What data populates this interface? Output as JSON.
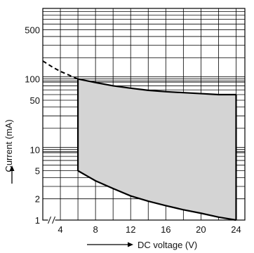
{
  "chart_data": {
    "type": "area",
    "xlabel": "DC voltage (V)",
    "ylabel": "Current (mA)",
    "x_scale": "linear",
    "y_scale": "log",
    "xlim": [
      2,
      25
    ],
    "ylim": [
      1,
      1000
    ],
    "x_ticks": [
      "4",
      "8",
      "12",
      "16",
      "20",
      "24"
    ],
    "y_ticks": [
      "1",
      "2",
      "5",
      "10",
      "50",
      "100",
      "500"
    ],
    "grid": true,
    "axis_break": "x",
    "colors": {
      "fill": "#d4d4d4",
      "line": "#000000",
      "grid": "#000000"
    },
    "series": [
      {
        "role": "upper-extrapolated",
        "line_style": "dashed",
        "points": [
          [
            2,
            180
          ],
          [
            3,
            150
          ],
          [
            4,
            128
          ],
          [
            5,
            113
          ],
          [
            6,
            100
          ]
        ]
      },
      {
        "role": "upper-boundary",
        "line_style": "solid",
        "points": [
          [
            6,
            100
          ],
          [
            8,
            89
          ],
          [
            10,
            80
          ],
          [
            12,
            74
          ],
          [
            14,
            69
          ],
          [
            16,
            66
          ],
          [
            18,
            64
          ],
          [
            20,
            62
          ],
          [
            22,
            60
          ],
          [
            24,
            60
          ]
        ]
      },
      {
        "role": "lower-boundary",
        "line_style": "solid",
        "points": [
          [
            6,
            5
          ],
          [
            8,
            3.6
          ],
          [
            10,
            2.8
          ],
          [
            12,
            2.2
          ],
          [
            14,
            1.85
          ],
          [
            16,
            1.6
          ],
          [
            18,
            1.4
          ],
          [
            20,
            1.25
          ],
          [
            22,
            1.1
          ],
          [
            24,
            1.0
          ]
        ]
      }
    ],
    "region": {
      "x_min": 6,
      "x_max": 24,
      "fill": "shaded"
    }
  }
}
